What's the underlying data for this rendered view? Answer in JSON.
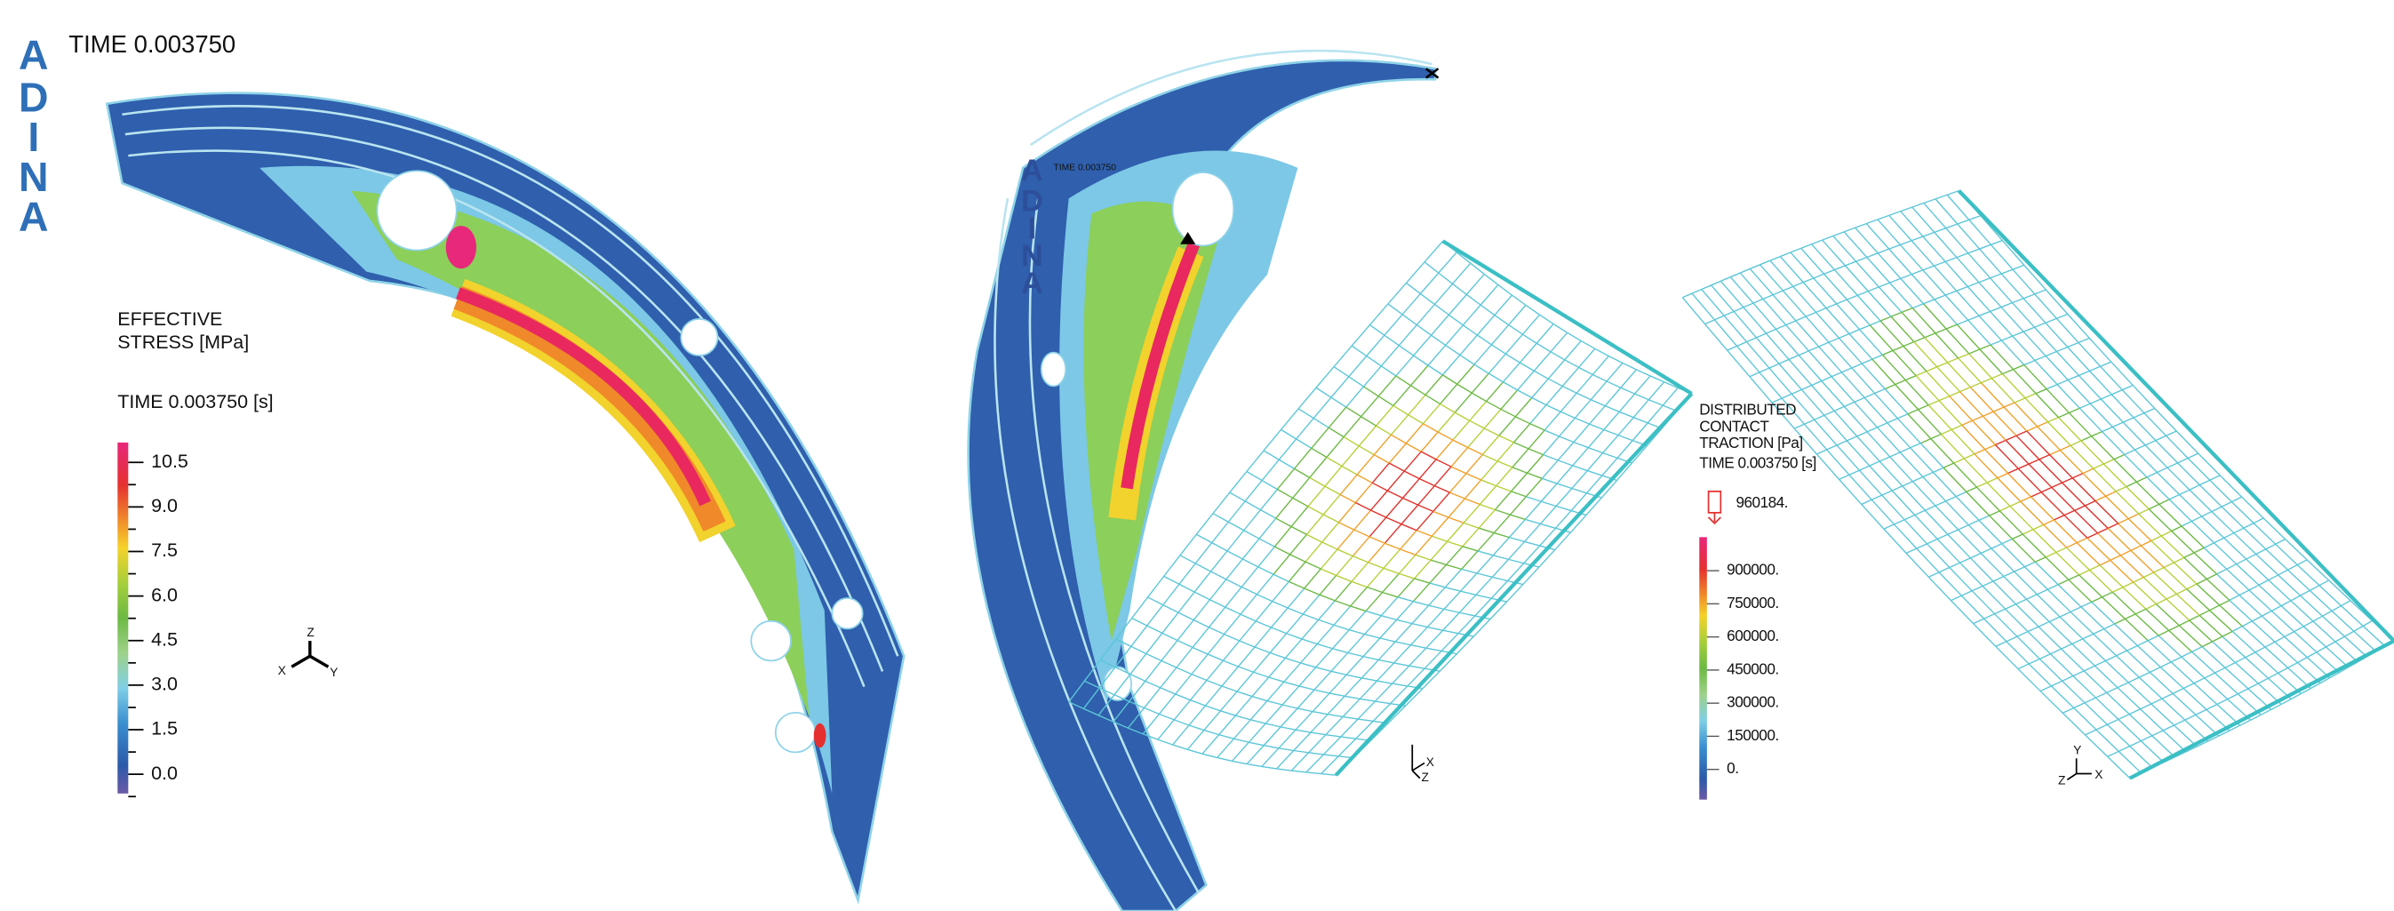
{
  "left_panel": {
    "logo": [
      "A",
      "D",
      "I",
      "N",
      "A"
    ],
    "time": "TIME 0.003750",
    "legend": {
      "title": [
        "EFFECTIVE",
        "STRESS [MPa]"
      ],
      "time": "TIME 0.003750 [s]",
      "ticks": [
        "10.5",
        "9.0",
        "7.5",
        "6.0",
        "4.5",
        "3.0",
        "1.5",
        "0.0"
      ]
    },
    "triad": [
      "Z",
      "X",
      "Y"
    ]
  },
  "middle_panel": {
    "logo": [
      "A",
      "D",
      "I",
      "N",
      "A"
    ],
    "time": "TIME 0.003750",
    "triad": [
      "X",
      "Z"
    ]
  },
  "right_panel": {
    "legend": {
      "title": [
        "DISTRIBUTED",
        "CONTACT",
        "TRACTION [Pa]"
      ],
      "time": "TIME 0.003750 [s]",
      "arrow_value": "960184.",
      "ticks": [
        "900000.",
        "750000.",
        "600000.",
        "450000.",
        "300000.",
        "150000.",
        "0."
      ]
    },
    "triad": [
      "Y",
      "Z",
      "X"
    ]
  }
}
